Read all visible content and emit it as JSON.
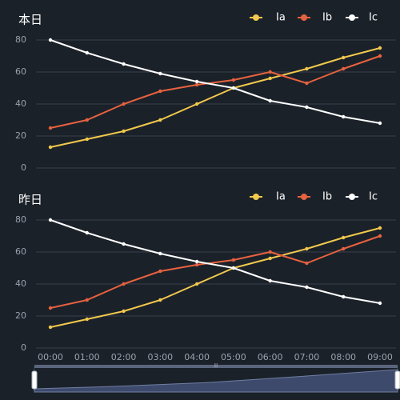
{
  "colors": {
    "background": "#1b2129",
    "grid": "#3a4049",
    "axis_text": "#9aa2ad",
    "title": "#ffffff",
    "Ia": "#f2c94c",
    "Ib": "#e8623f",
    "Ic": "#ffffff",
    "slider_fill": "#3d4a6b",
    "slider_track": "#5a657d"
  },
  "x_labels": [
    "00:00",
    "01:00",
    "02:00",
    "03:00",
    "04:00",
    "05:00",
    "06:00",
    "07:00",
    "08:00",
    "09:00"
  ],
  "chart_data": [
    {
      "type": "line",
      "title": "本日",
      "x": [
        "00:00",
        "01:00",
        "02:00",
        "03:00",
        "04:00",
        "05:00",
        "06:00",
        "07:00",
        "08:00",
        "09:00"
      ],
      "ylim": [
        0,
        80
      ],
      "yticks": [
        0,
        20,
        40,
        60,
        80
      ],
      "grid": true,
      "legend_position": "top-right",
      "series": [
        {
          "name": "Ia",
          "values": [
            13,
            18,
            23,
            30,
            40,
            50,
            56,
            62,
            69,
            75
          ]
        },
        {
          "name": "Ib",
          "values": [
            25,
            30,
            40,
            48,
            52,
            55,
            60,
            53,
            62,
            70
          ]
        },
        {
          "name": "Ic",
          "values": [
            80,
            72,
            65,
            59,
            54,
            50,
            42,
            38,
            32,
            28
          ]
        }
      ]
    },
    {
      "type": "line",
      "title": "昨日",
      "x": [
        "00:00",
        "01:00",
        "02:00",
        "03:00",
        "04:00",
        "05:00",
        "06:00",
        "07:00",
        "08:00",
        "09:00"
      ],
      "ylim": [
        0,
        80
      ],
      "yticks": [
        0,
        20,
        40,
        60,
        80
      ],
      "grid": true,
      "legend_position": "top-right",
      "series": [
        {
          "name": "Ia",
          "values": [
            13,
            18,
            23,
            30,
            40,
            50,
            56,
            62,
            69,
            75
          ]
        },
        {
          "name": "Ib",
          "values": [
            25,
            30,
            40,
            48,
            52,
            55,
            60,
            53,
            62,
            70
          ]
        },
        {
          "name": "Ic",
          "values": [
            80,
            72,
            65,
            59,
            54,
            50,
            42,
            38,
            32,
            28
          ]
        }
      ]
    }
  ],
  "data_zoom": {
    "range_start": 0,
    "range_end": 1
  }
}
